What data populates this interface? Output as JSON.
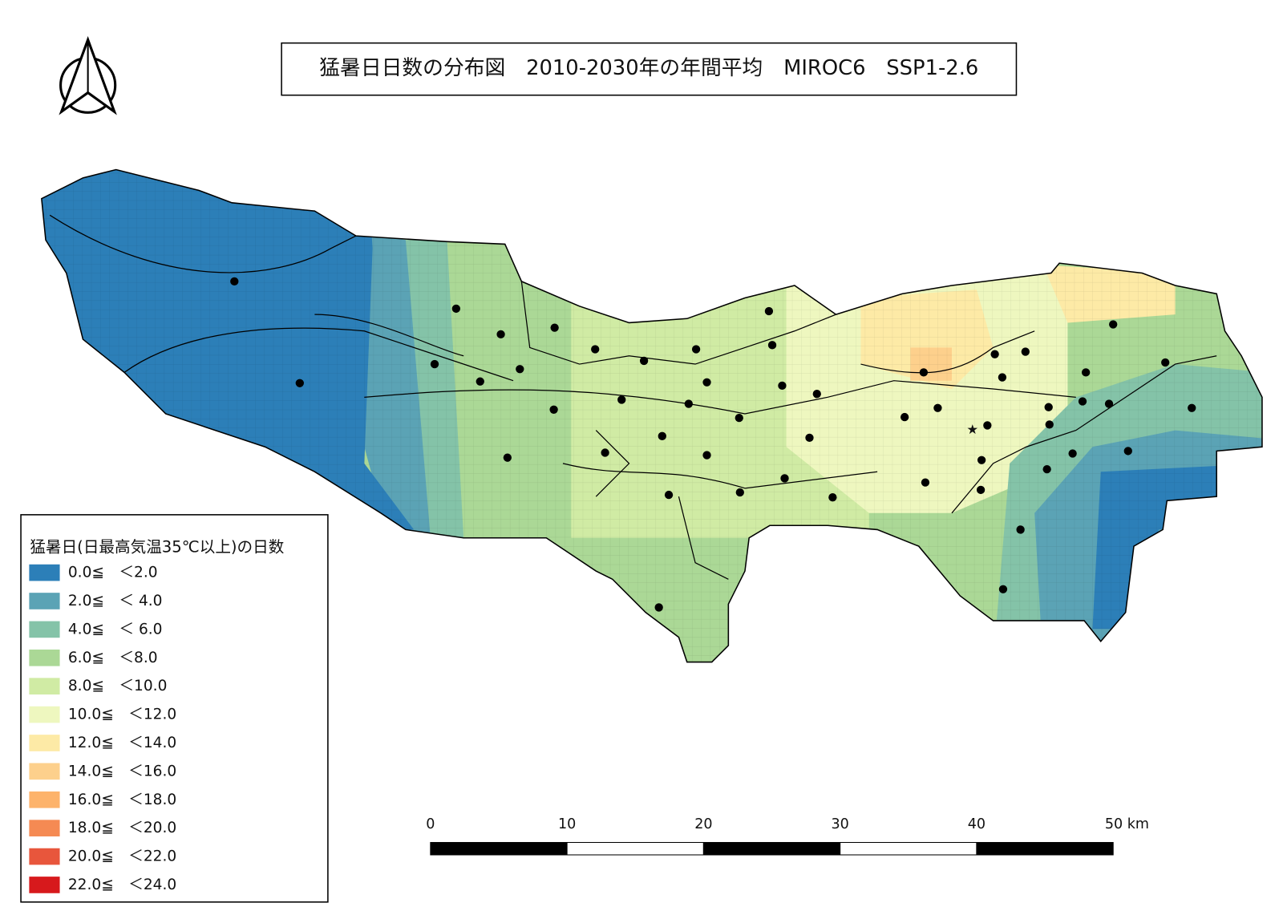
{
  "title": "猛暑日日数の分布図　2010-2030年の年間平均　MIROC6　SSP1-2.6",
  "legend": {
    "title": "猛暑日(日最高気温35℃以上)の日数",
    "items": [
      {
        "label": "0.0≦　＜2.0",
        "color": "#2c7fb8"
      },
      {
        "label": "2.0≦　＜ 4.0",
        "color": "#5ba3b5"
      },
      {
        "label": "4.0≦　＜ 6.0",
        "color": "#84c3a8"
      },
      {
        "label": "6.0≦　＜8.0",
        "color": "#abd896"
      },
      {
        "label": "8.0≦　＜10.0",
        "color": "#d0eba4"
      },
      {
        "label": "10.0≦　＜12.0",
        "color": "#eef7bf"
      },
      {
        "label": "12.0≦　＜14.0",
        "color": "#fdeaa6"
      },
      {
        "label": "14.0≦　＜16.0",
        "color": "#fdd08c"
      },
      {
        "label": "16.0≦　＜18.0",
        "color": "#fdb36b"
      },
      {
        "label": "18.0≦　＜20.0",
        "color": "#f58a53"
      },
      {
        "label": "20.0≦　＜22.0",
        "color": "#e8563c"
      },
      {
        "label": "22.0≦　＜24.0",
        "color": "#d7191c"
      }
    ]
  },
  "scale_bar": {
    "labels": [
      "0",
      "10",
      "20",
      "30",
      "40",
      "50 km"
    ]
  }
}
